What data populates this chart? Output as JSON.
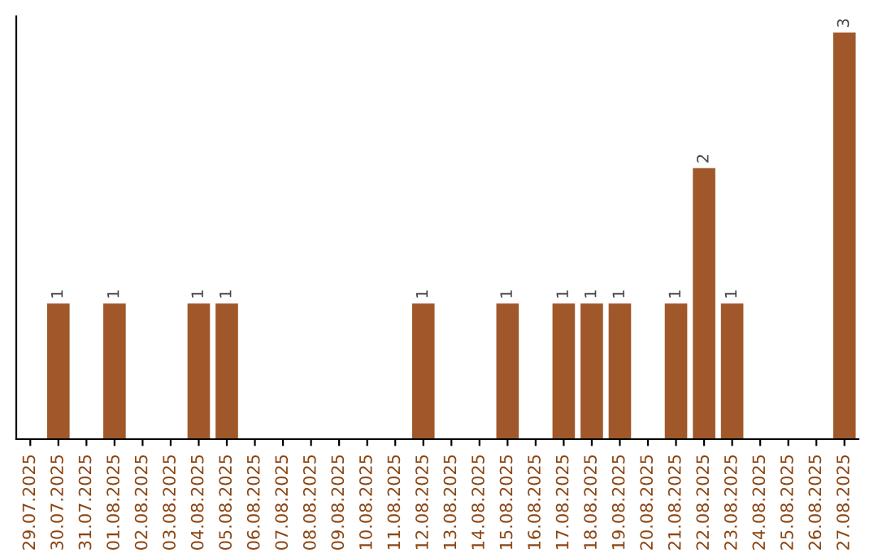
{
  "chart_data": {
    "type": "bar",
    "categories": [
      "29.07.2025",
      "30.07.2025",
      "31.07.2025",
      "01.08.2025",
      "02.08.2025",
      "03.08.2025",
      "04.08.2025",
      "05.08.2025",
      "06.08.2025",
      "07.08.2025",
      "08.08.2025",
      "09.08.2025",
      "10.08.2025",
      "11.08.2025",
      "12.08.2025",
      "13.08.2025",
      "14.08.2025",
      "15.08.2025",
      "16.08.2025",
      "17.08.2025",
      "18.08.2025",
      "19.08.2025",
      "20.08.2025",
      "21.08.2025",
      "22.08.2025",
      "23.08.2025",
      "24.08.2025",
      "25.08.2025",
      "26.08.2025",
      "27.08.2025"
    ],
    "values": [
      0,
      1,
      0,
      1,
      0,
      0,
      1,
      1,
      0,
      0,
      0,
      0,
      0,
      0,
      1,
      0,
      0,
      1,
      0,
      1,
      1,
      1,
      0,
      1,
      2,
      1,
      0,
      0,
      0,
      3
    ],
    "value_labels": [
      null,
      "1",
      null,
      "1",
      null,
      null,
      "1",
      "1",
      null,
      null,
      null,
      null,
      null,
      null,
      "1",
      null,
      null,
      "1",
      null,
      "1",
      "1",
      "1",
      null,
      "1",
      "2",
      "1",
      null,
      null,
      null,
      "3"
    ],
    "color": "#a0582a",
    "tick_labels": "x",
    "grid": false,
    "legend": false
  }
}
